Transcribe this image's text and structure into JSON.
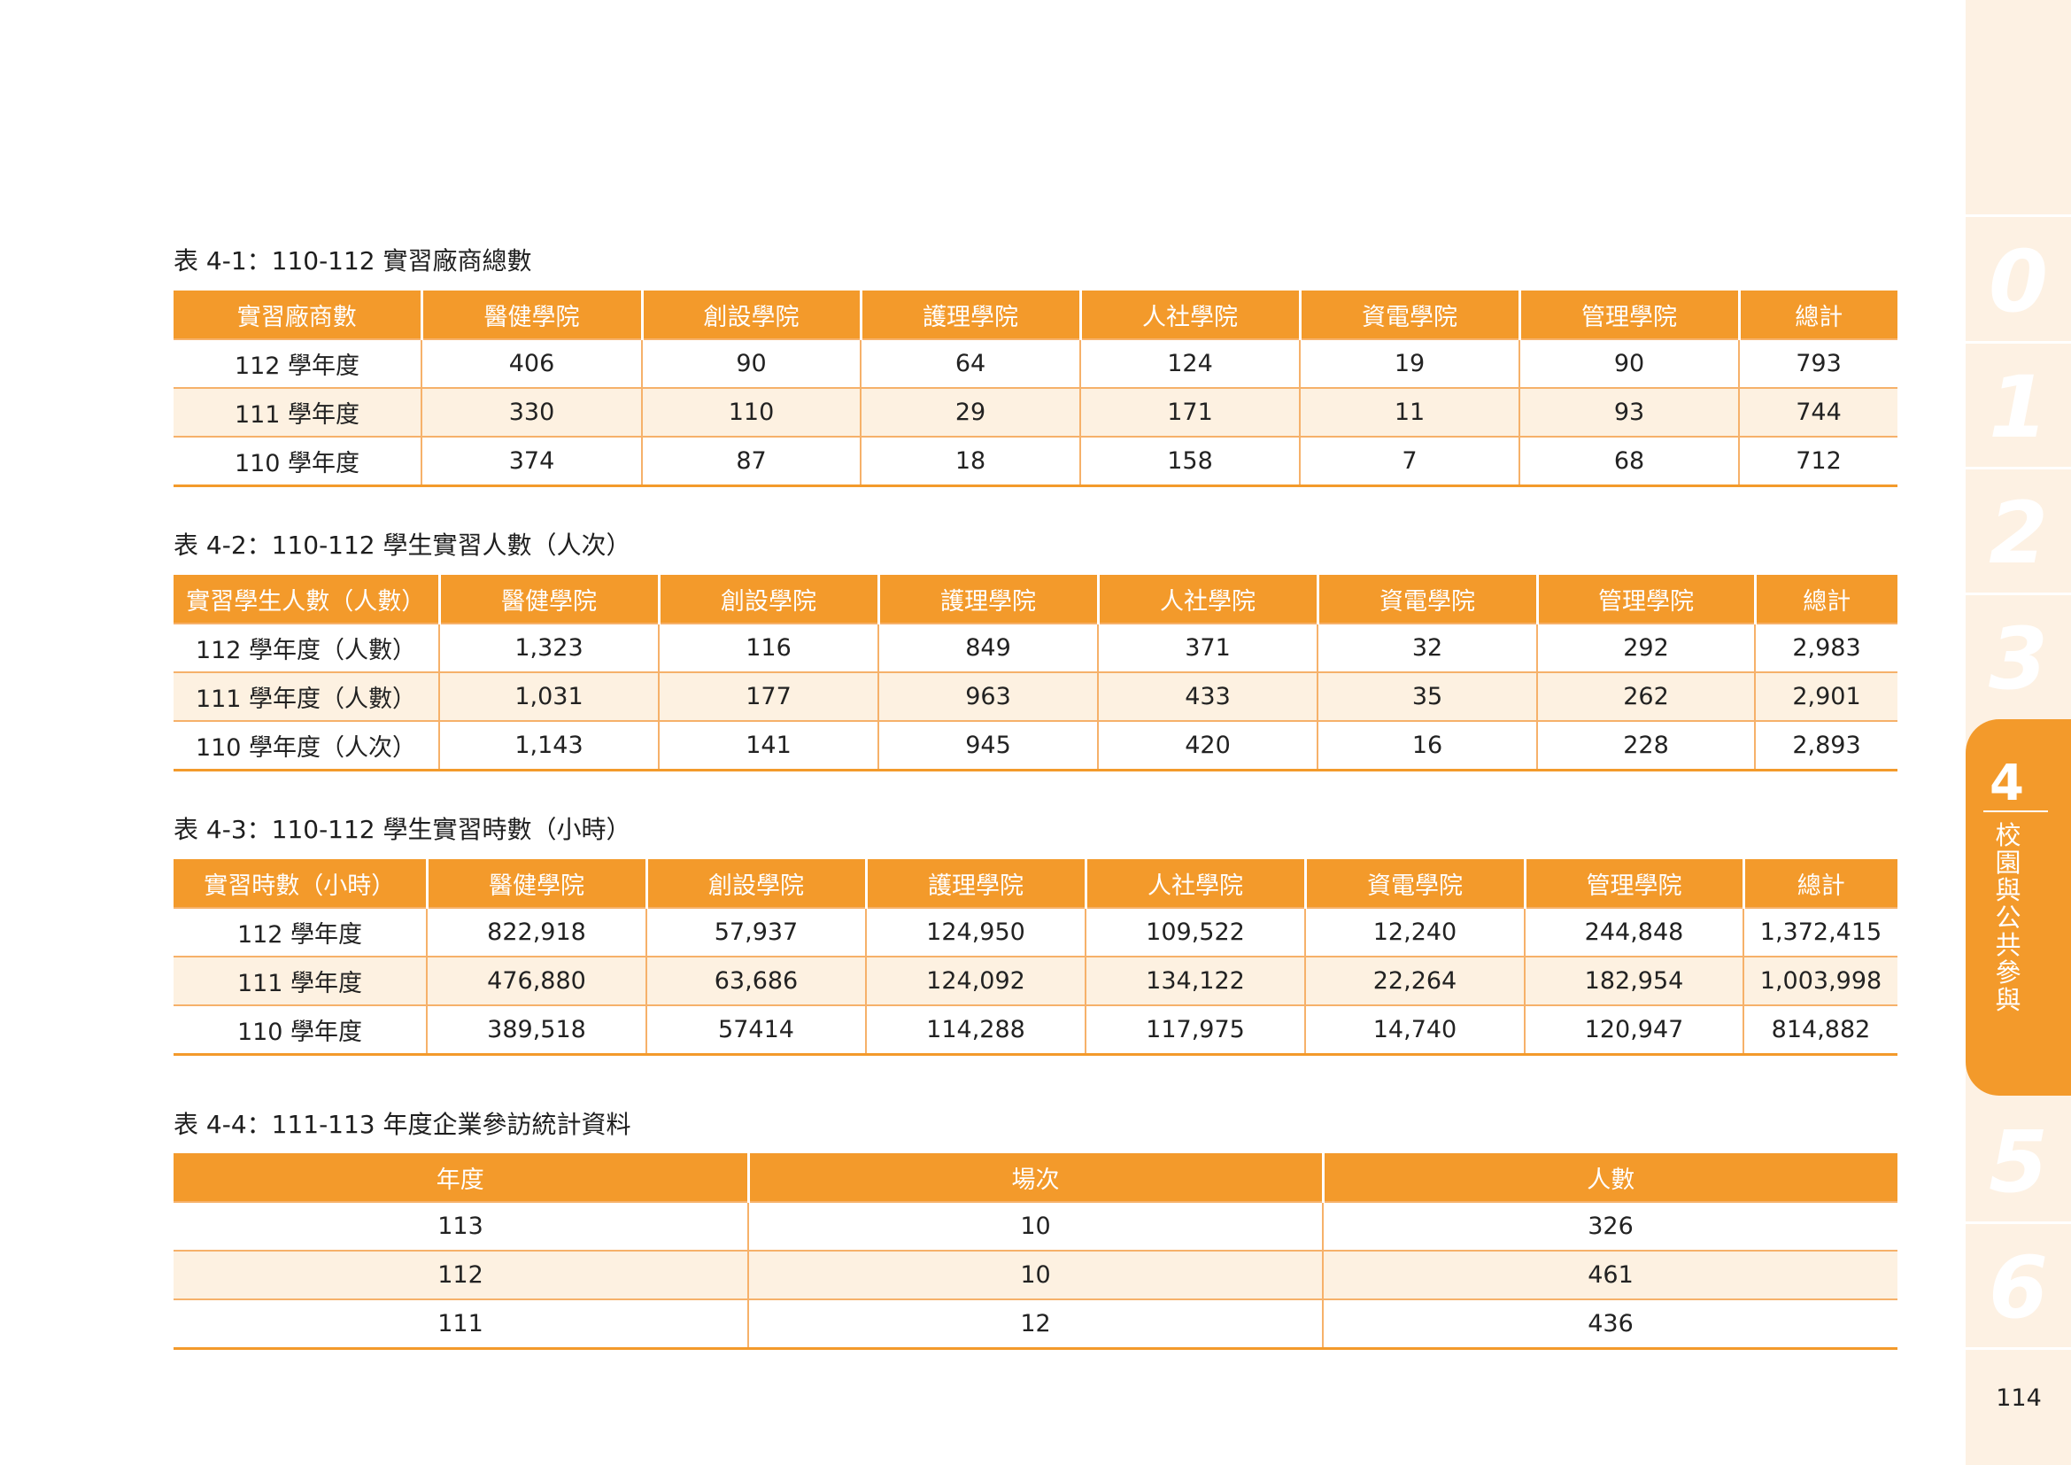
{
  "tables": [
    {
      "caption": "表 4-1：110-112 實習廠商總數",
      "headers": [
        "實習廠商數",
        "醫健學院",
        "創設學院",
        "護理學院",
        "人社學院",
        "資電學院",
        "管理學院",
        "總計"
      ],
      "rows": [
        [
          "112 學年度",
          "406",
          "90",
          "64",
          "124",
          "19",
          "90",
          "793"
        ],
        [
          "111 學年度",
          "330",
          "110",
          "29",
          "171",
          "11",
          "93",
          "744"
        ],
        [
          "110 學年度",
          "374",
          "87",
          "18",
          "158",
          "7",
          "68",
          "712"
        ]
      ]
    },
    {
      "caption": "表 4-2：110-112 學生實習人數（人次）",
      "headers": [
        "實習學生人數（人數）",
        "醫健學院",
        "創設學院",
        "護理學院",
        "人社學院",
        "資電學院",
        "管理學院",
        "總計"
      ],
      "rows": [
        [
          "112 學年度（人數）",
          "1,323",
          "116",
          "849",
          "371",
          "32",
          "292",
          "2,983"
        ],
        [
          "111 學年度（人數）",
          "1,031",
          "177",
          "963",
          "433",
          "35",
          "262",
          "2,901"
        ],
        [
          "110 學年度（人次）",
          "1,143",
          "141",
          "945",
          "420",
          "16",
          "228",
          "2,893"
        ]
      ]
    },
    {
      "caption": "表 4-3：110-112 學生實習時數（小時）",
      "headers": [
        "實習時數（小時）",
        "醫健學院",
        "創設學院",
        "護理學院",
        "人社學院",
        "資電學院",
        "管理學院",
        "總計"
      ],
      "rows": [
        [
          "112 學年度",
          "822,918",
          "57,937",
          "124,950",
          "109,522",
          "12,240",
          "244,848",
          "1,372,415"
        ],
        [
          "111 學年度",
          "476,880",
          "63,686",
          "124,092",
          "134,122",
          "22,264",
          "182,954",
          "1,003,998"
        ],
        [
          "110 學年度",
          "389,518",
          "57414",
          "114,288",
          "117,975",
          "14,740",
          "120,947",
          "814,882"
        ]
      ]
    },
    {
      "caption": "表 4-4：111-113 年度企業參訪統計資料",
      "headers": [
        "年度",
        "場次",
        "人數"
      ],
      "rows": [
        [
          "113",
          "10",
          "326"
        ],
        [
          "112",
          "10",
          "461"
        ],
        [
          "111",
          "12",
          "436"
        ]
      ]
    }
  ],
  "sidebar": {
    "chapters": [
      "0",
      "1",
      "2",
      "3",
      "5",
      "6"
    ],
    "active_number": "4",
    "active_label": "校園與公共參與"
  },
  "page_number": "114",
  "colors": {
    "accent": "#f39a2b",
    "stripe": "#fdf1e1",
    "sidebar_bg": "#fdf1e3"
  }
}
